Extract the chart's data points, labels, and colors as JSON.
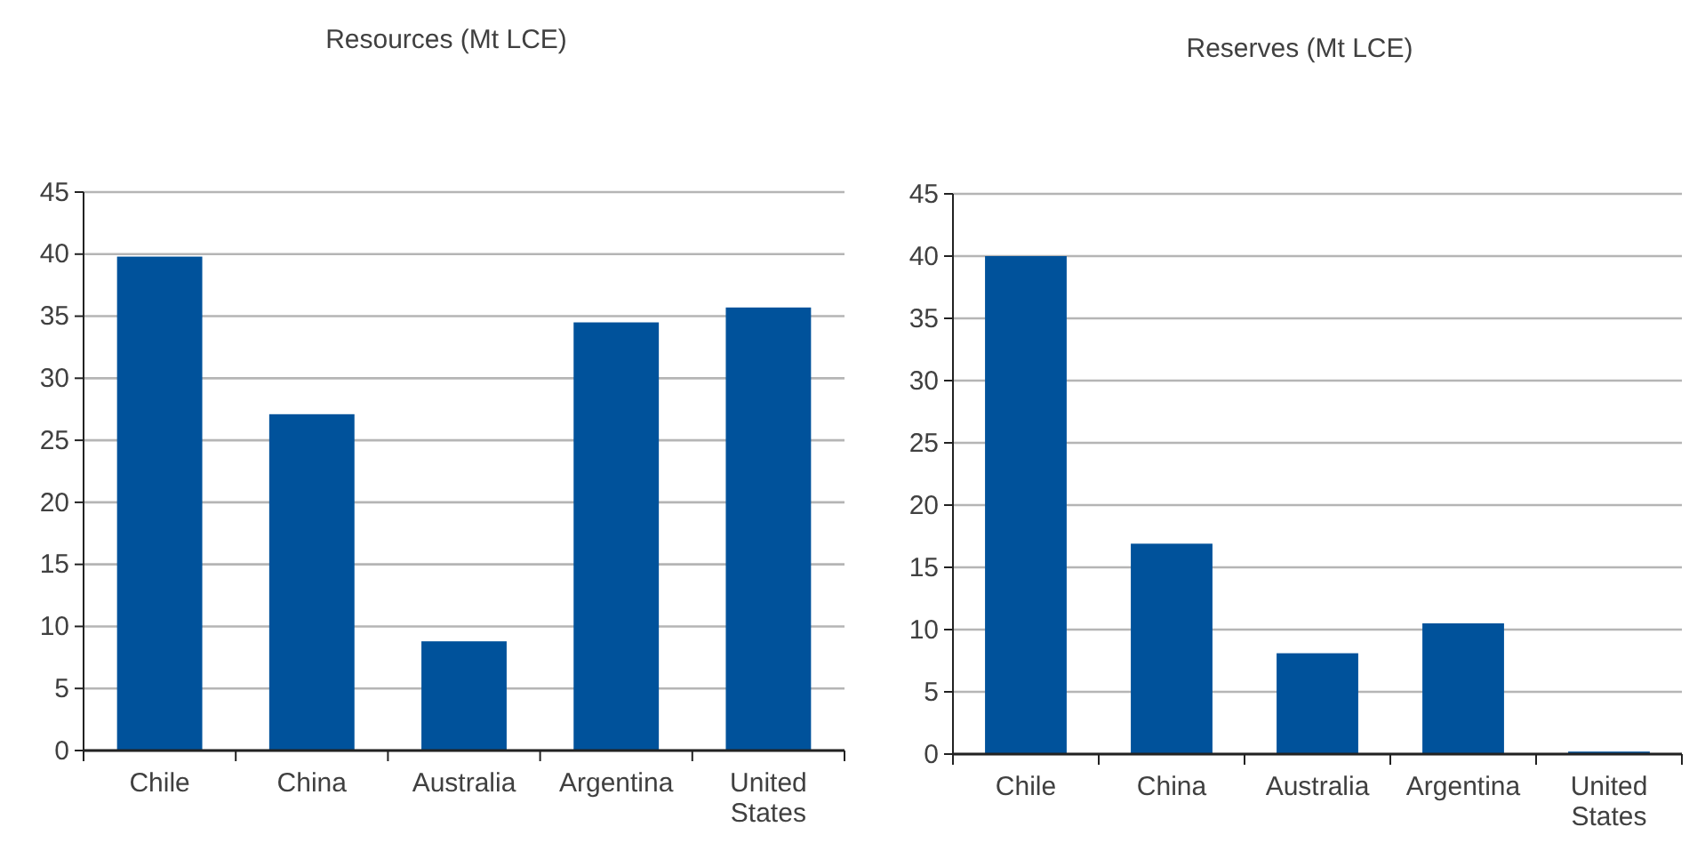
{
  "chart_data": [
    {
      "type": "bar",
      "title": "Resources (Mt LCE)",
      "categories": [
        "Chile",
        "China",
        "Australia",
        "Argentina",
        "United States"
      ],
      "values": [
        39.8,
        27.1,
        8.8,
        34.5,
        35.7
      ],
      "color": "#00529b",
      "ylim": [
        0,
        45
      ],
      "yticks": [
        0,
        5,
        10,
        15,
        20,
        25,
        30,
        35,
        40,
        45
      ],
      "grid": "y"
    },
    {
      "type": "bar",
      "title": "Reserves (Mt LCE)",
      "categories": [
        "Chile",
        "China",
        "Australia",
        "Argentina",
        "United States"
      ],
      "values": [
        40,
        16.9,
        8.1,
        10.5,
        0.2
      ],
      "color": "#00529b",
      "ylim": [
        0,
        45
      ],
      "yticks": [
        0,
        5,
        10,
        15,
        20,
        25,
        30,
        35,
        40,
        45
      ],
      "grid": "y"
    }
  ]
}
